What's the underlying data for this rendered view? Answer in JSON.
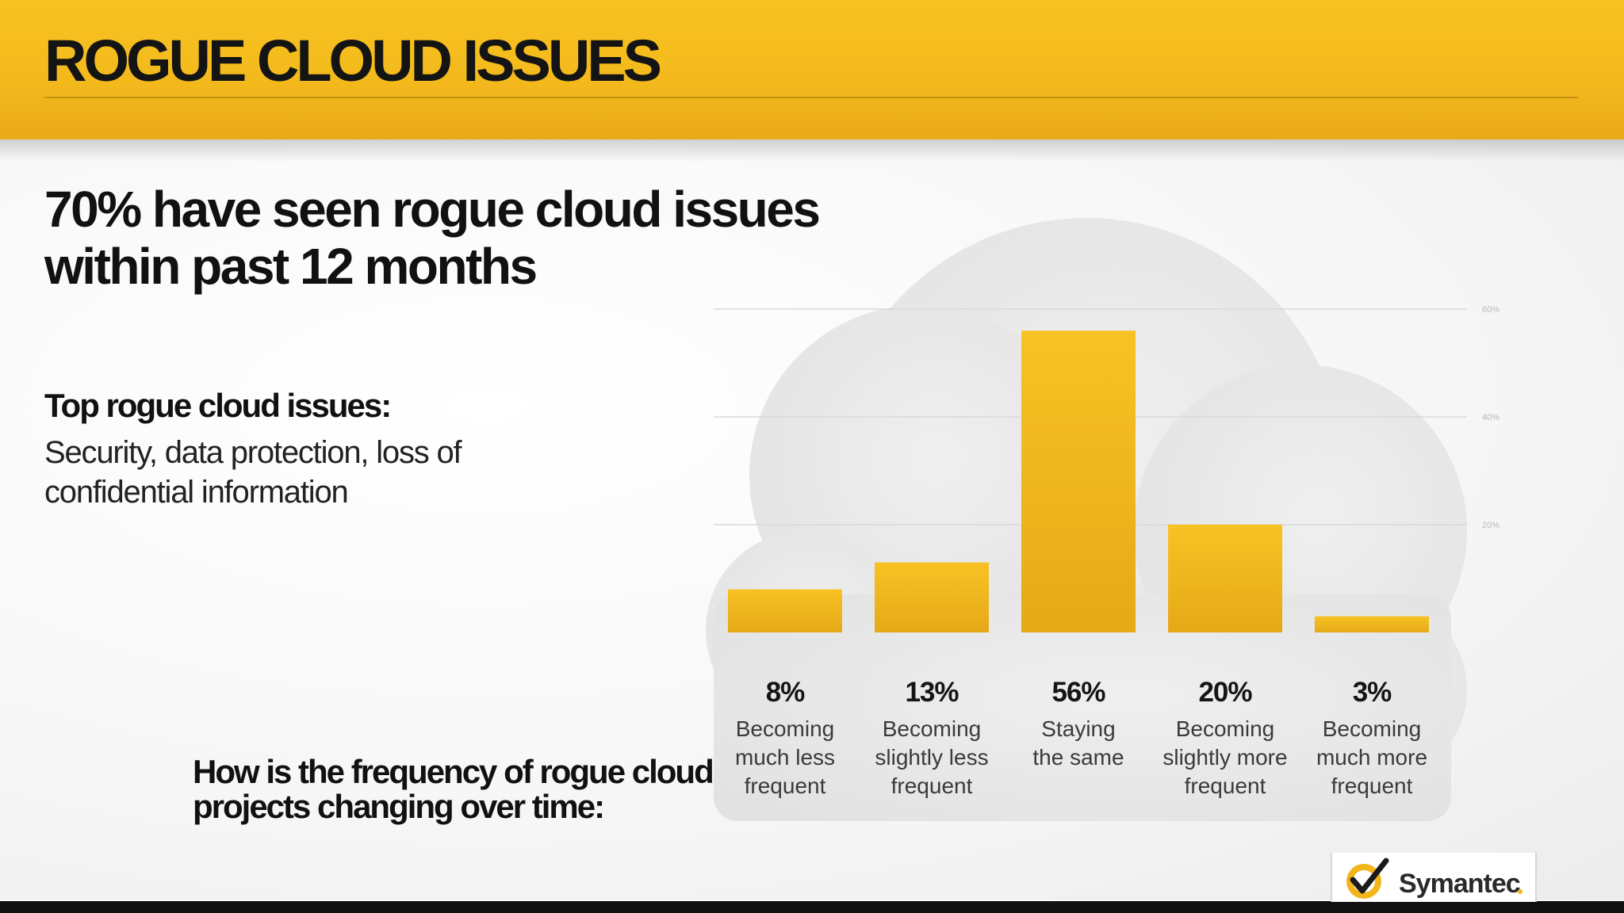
{
  "header": {
    "title": "ROGUE CLOUD ISSUES",
    "band_color": "#f5bc1e"
  },
  "headline": "70% have seen rogue cloud issues within past 12 months",
  "top_issues": {
    "heading": "Top rogue cloud issues:",
    "text": "Security, data protection, loss of confidential information"
  },
  "question": "How is the frequency of rogue cloud projects changing over time:",
  "logo": {
    "text": "Symantec",
    "icon": "checkmark-logo-icon"
  },
  "colors": {
    "bar": "#f5bb1d",
    "bar_dark": "#e2a615",
    "cloud": "#e8e8e8"
  },
  "chart_data": {
    "type": "bar",
    "title": "How is the frequency of rogue cloud projects changing over time:",
    "categories": [
      "Becoming much less frequent",
      "Becoming slightly less frequent",
      "Staying the same",
      "Becoming slightly more frequent",
      "Becoming much more frequent"
    ],
    "category_lines": [
      [
        "Becoming",
        "much less",
        "frequent"
      ],
      [
        "Becoming",
        "slightly less",
        "frequent"
      ],
      [
        "Staying",
        "the same"
      ],
      [
        "Becoming",
        "slightly more",
        "frequent"
      ],
      [
        "Becoming",
        "much more",
        "frequent"
      ]
    ],
    "values": [
      8,
      13,
      56,
      20,
      3
    ],
    "value_labels": [
      "8%",
      "13%",
      "56%",
      "20%",
      "3%"
    ],
    "unit": "%",
    "ylim": [
      0,
      60
    ],
    "yticks": [
      20,
      40,
      60
    ],
    "ytick_labels": [
      "20%",
      "40%",
      "60%"
    ],
    "xlabel": "",
    "ylabel": "",
    "grid": true,
    "legend": "none"
  }
}
